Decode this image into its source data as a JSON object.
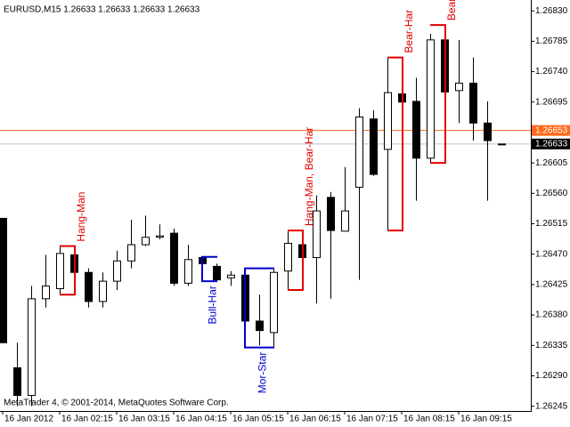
{
  "chart_data": {
    "type": "candlestick",
    "title": "EURUSD,M15  1.26633 1.26633 1.26633 1.26633",
    "footer": "MetaTrader 4, © 2001-2014, MetaQuotes Software Corp.",
    "categories": [
      "16 Jan 2012",
      null,
      null,
      null,
      "16 Jan 02:15",
      null,
      null,
      null,
      "16 Jan 03:15",
      null,
      null,
      null,
      "16 Jan 04:15",
      null,
      null,
      null,
      "16 Jan 05:15",
      null,
      null,
      null,
      "16 Jan 06:15",
      null,
      null,
      null,
      "16 Jan 07:15",
      null,
      null,
      null,
      "16 Jan 08:15",
      null,
      null,
      null,
      "16 Jan 09:15",
      null,
      null,
      null
    ],
    "open": [
      1.26523,
      1.26302,
      1.26261,
      1.26404,
      1.26419,
      1.26469,
      1.26443,
      1.264,
      1.2643,
      1.2646,
      1.26484,
      1.26495,
      1.26501,
      1.26427,
      1.26465,
      1.26452,
      1.26435,
      1.26439,
      1.26371,
      1.26354,
      1.26445,
      1.26484,
      1.26465,
      1.26554,
      1.26504,
      1.26569,
      1.2667,
      1.26625,
      1.26707,
      1.26696,
      1.26612,
      1.26787,
      1.26712,
      1.26723,
      1.26664,
      1.26633
    ],
    "high": [
      1.26523,
      1.26339,
      1.26423,
      1.26469,
      1.26482,
      1.26475,
      1.26449,
      1.26443,
      1.26475,
      1.26521,
      1.26527,
      1.26514,
      1.26508,
      1.26484,
      1.26466,
      1.26456,
      1.26445,
      1.26443,
      1.2641,
      1.26449,
      1.26505,
      1.26505,
      1.26557,
      1.26562,
      1.26599,
      1.26686,
      1.26683,
      1.26761,
      1.26716,
      1.26731,
      1.26796,
      1.26809,
      1.26787,
      1.26761,
      1.26696,
      1.26633
    ],
    "low": [
      1.26339,
      1.26245,
      1.26245,
      1.26391,
      1.2641,
      1.26436,
      1.26391,
      1.26391,
      1.26417,
      1.26449,
      1.26482,
      1.26492,
      1.26423,
      1.26423,
      1.26456,
      1.2643,
      1.26423,
      1.26365,
      1.26335,
      1.26332,
      1.26417,
      1.26417,
      1.26397,
      1.26404,
      1.26504,
      1.26432,
      1.26586,
      1.26505,
      1.26651,
      1.26549,
      1.26605,
      1.26705,
      1.26664,
      1.26638,
      1.26549,
      1.26633
    ],
    "close": [
      1.26339,
      1.26261,
      1.26404,
      1.26423,
      1.26471,
      1.26443,
      1.264,
      1.2643,
      1.2646,
      1.26484,
      1.26495,
      1.26497,
      1.26427,
      1.26462,
      1.26456,
      1.26432,
      1.26439,
      1.26371,
      1.26357,
      1.26443,
      1.26486,
      1.26465,
      1.26534,
      1.26505,
      1.26534,
      1.26673,
      1.26588,
      1.26709,
      1.26695,
      1.26612,
      1.26787,
      1.2671,
      1.26723,
      1.26664,
      1.26638,
      1.26633
    ],
    "bull_color": "#ffffff",
    "bear_color": "#000000",
    "ylim": [
      1.26238,
      1.26846
    ],
    "yticks": [
      {
        "value": 1.2683,
        "label": "1.26830"
      },
      1.26785,
      {
        "value": 1.2674,
        "label": "1.26740"
      },
      1.26695,
      1.26605,
      {
        "value": 1.2656,
        "label": "1.26560"
      },
      1.26515,
      {
        "value": 1.2647,
        "label": "1.26470"
      },
      1.26425,
      {
        "value": 1.2638,
        "label": "1.26380"
      },
      1.26335,
      {
        "value": 1.2629,
        "label": "1.26290"
      },
      1.26245
    ],
    "level": {
      "value": 1.26653,
      "color": "#ff6a1a"
    },
    "bid": {
      "value": 1.26633,
      "color": "#c0c0c0"
    },
    "patterns": [
      {
        "label": "Hang-Man",
        "start": 4,
        "end": 5,
        "color": "#e00000"
      },
      {
        "label": "Bull-Har",
        "start": 14,
        "end": 15,
        "color": "#0000cc"
      },
      {
        "label": "Mor-Star",
        "start": 17,
        "end": 19,
        "color": "#0000cc"
      },
      {
        "label": "Hang-Man, Bear-Har",
        "start": 20,
        "end": 21,
        "color": "#e00000"
      },
      {
        "label": "Bear-Har",
        "start": 27,
        "end": 28,
        "color": "#e00000"
      },
      {
        "label": "Bear-Har",
        "start": 30,
        "end": 31,
        "color": "#e00000"
      }
    ]
  }
}
